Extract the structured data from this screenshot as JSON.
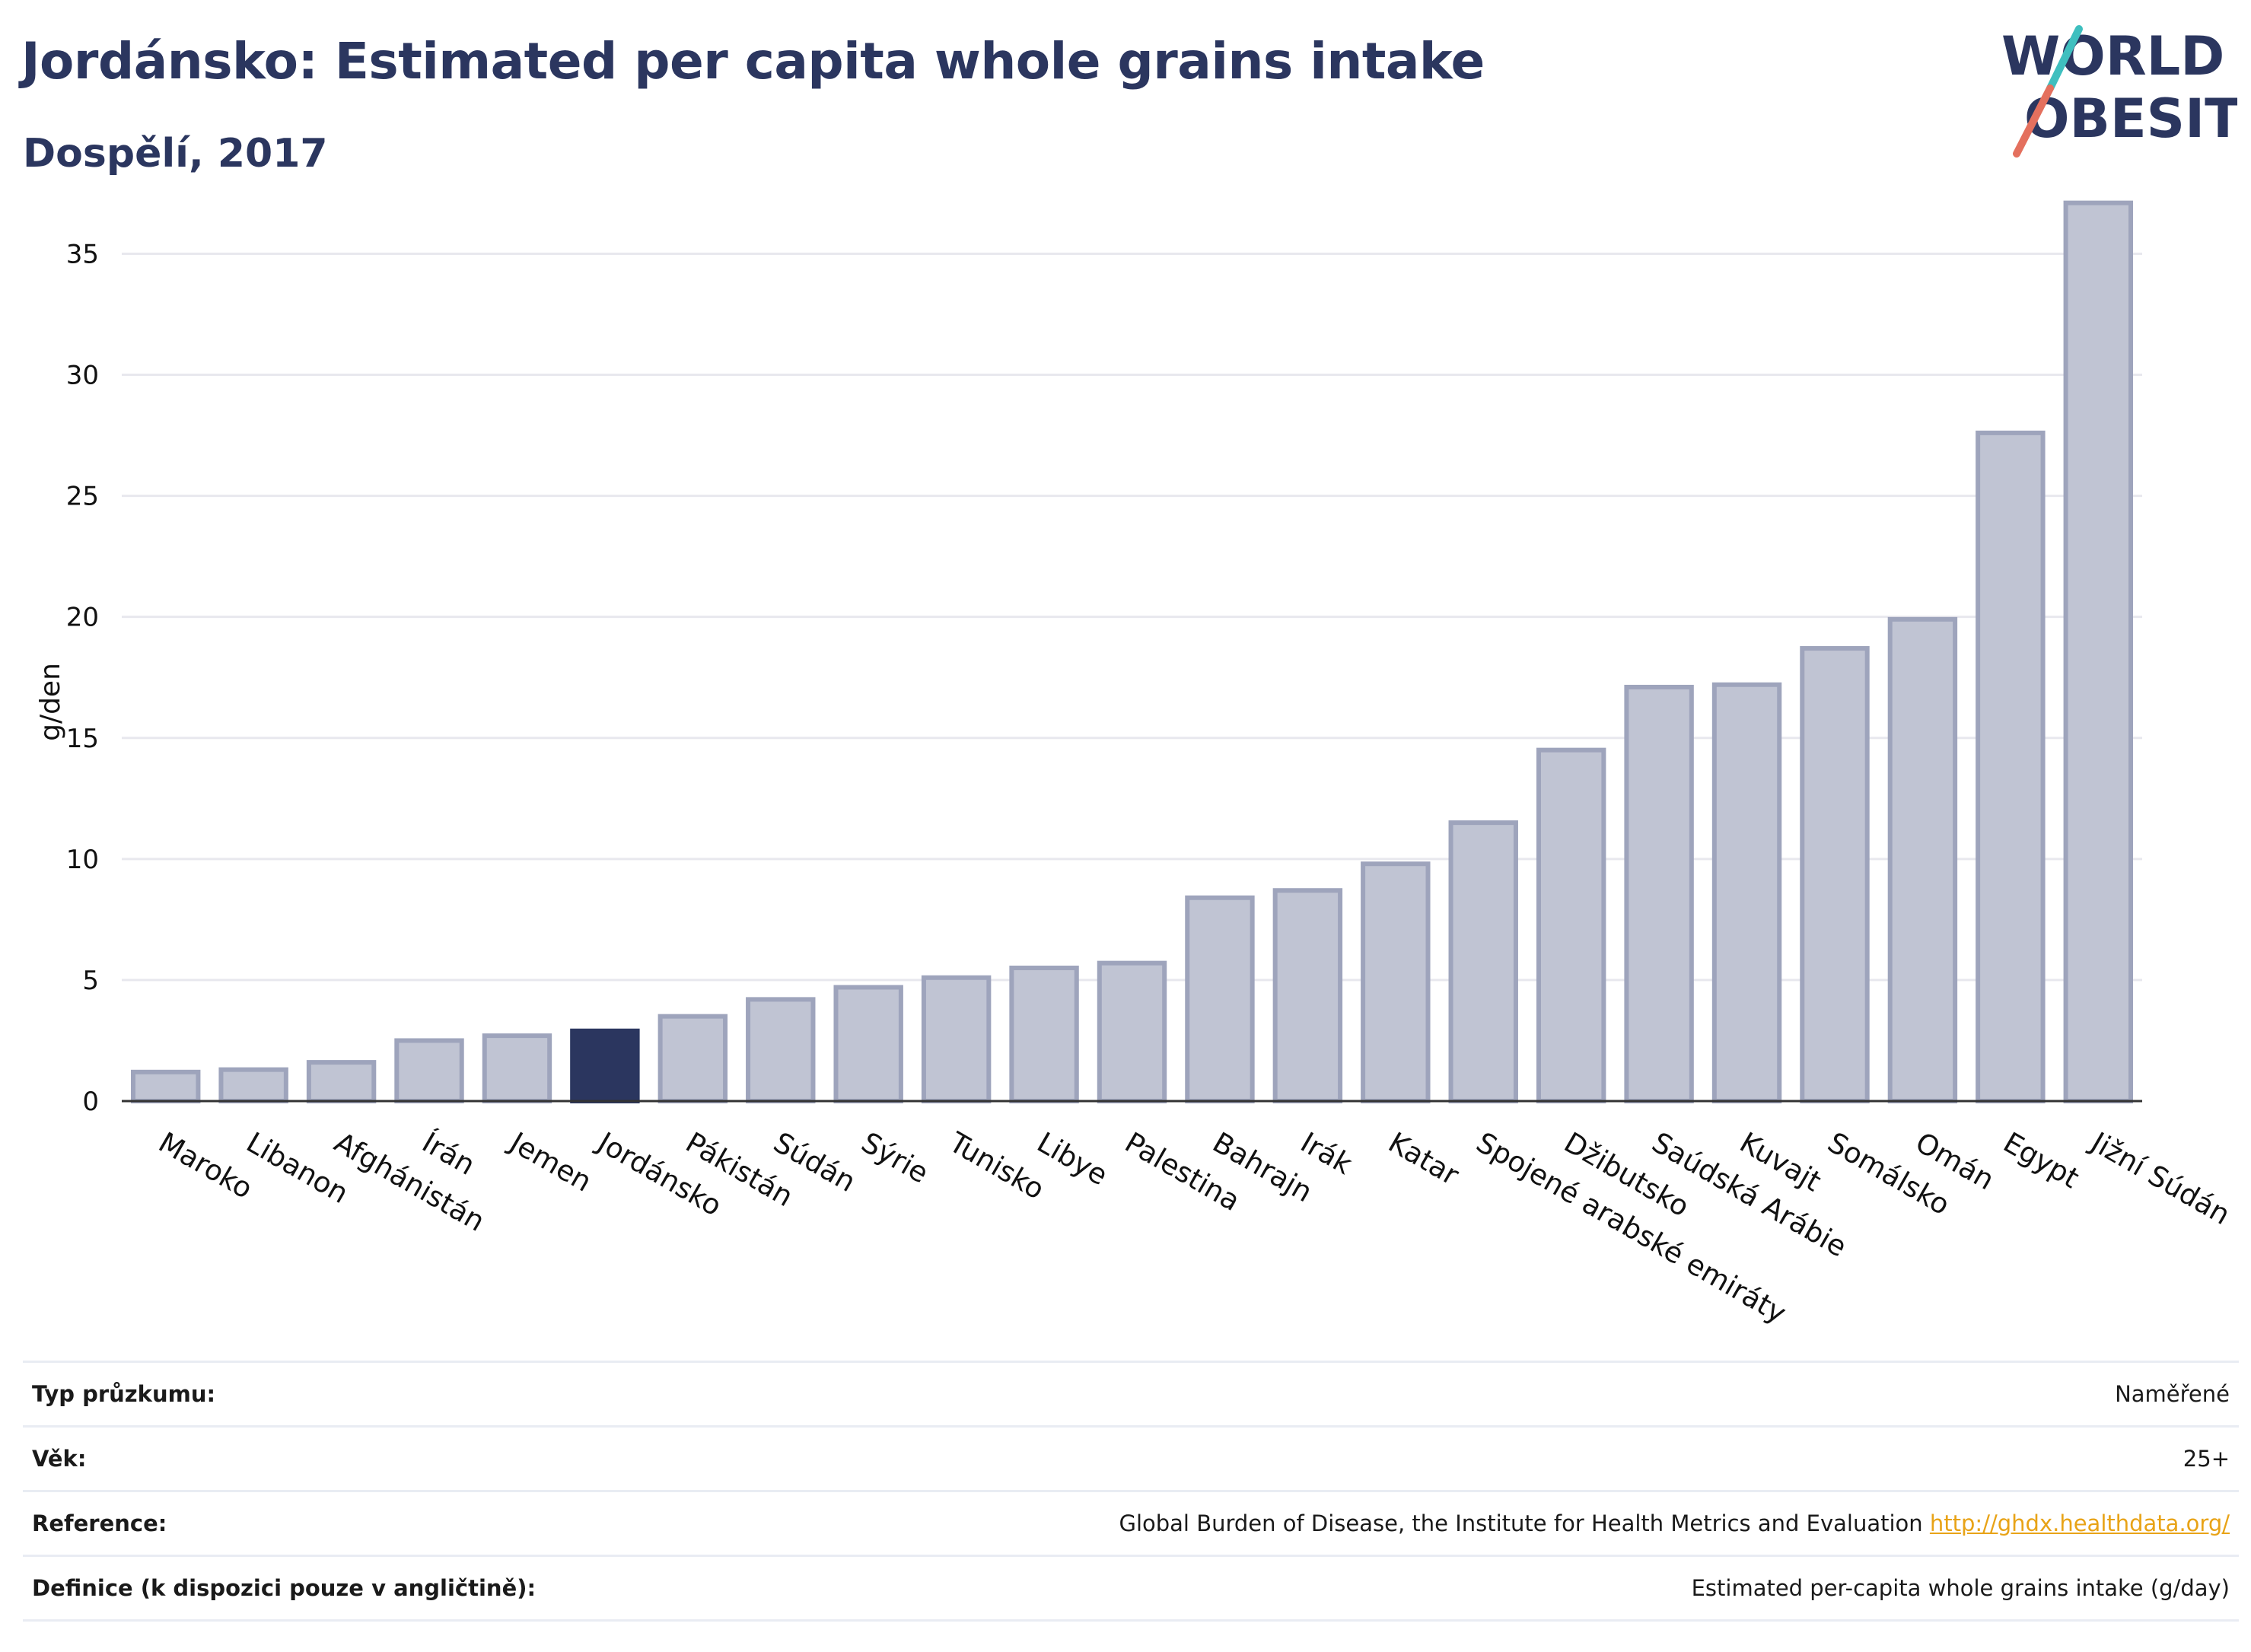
{
  "header": {
    "title": "Jordánsko: Estimated per capita whole grains intake",
    "subtitle": "Dospělí, 2017"
  },
  "logo": {
    "line1": "WORLD",
    "line2": "OBESITY"
  },
  "colors": {
    "bar": "#c0c4d3",
    "bar_edge": "#9ea4bc",
    "highlight": "#2b365f",
    "grid": "#e8e8ee",
    "axis": "#333333",
    "logo_teal": "#3fbfbf",
    "logo_coral": "#e4705e"
  },
  "chart_data": {
    "type": "bar",
    "title": "Jordánsko: Estimated per capita whole grains intake",
    "subtitle": "Dospělí, 2017",
    "ylabel": "g/den",
    "xlabel": "",
    "ylim": [
      0,
      38
    ],
    "yticks": [
      0,
      5,
      10,
      15,
      20,
      25,
      30,
      35
    ],
    "grid": true,
    "highlight": "Jordánsko",
    "categories": [
      "Maroko",
      "Libanon",
      "Afghánistán",
      "Írán",
      "Jemen",
      "Jordánsko",
      "Pákistán",
      "Súdán",
      "Sýrie",
      "Tunisko",
      "Libye",
      "Palestina",
      "Bahrajn",
      "Irák",
      "Katar",
      "Spojené arabské emiráty",
      "Džibutsko",
      "Saúdská Arábie",
      "Kuvajt",
      "Somálsko",
      "Omán",
      "Egypt",
      "Jižní Súdán"
    ],
    "values": [
      1.2,
      1.3,
      1.6,
      2.5,
      2.7,
      2.9,
      3.5,
      4.2,
      4.7,
      5.1,
      5.5,
      5.7,
      8.4,
      8.7,
      9.8,
      11.5,
      14.5,
      17.1,
      17.2,
      18.7,
      19.9,
      27.6,
      37.1
    ]
  },
  "meta": {
    "rows": [
      {
        "label": "Typ průzkumu:",
        "value": "Naměřené"
      },
      {
        "label": "Věk:",
        "value": "25+"
      },
      {
        "label": "Reference:",
        "value": "Global Burden of Disease, the Institute for Health Metrics and Evaluation",
        "link": "http://ghdx.healthdata.org/"
      },
      {
        "label": "Definice (k dispozici pouze v angličtině):",
        "value": "Estimated per-capita whole grains intake (g/day)"
      }
    ]
  }
}
